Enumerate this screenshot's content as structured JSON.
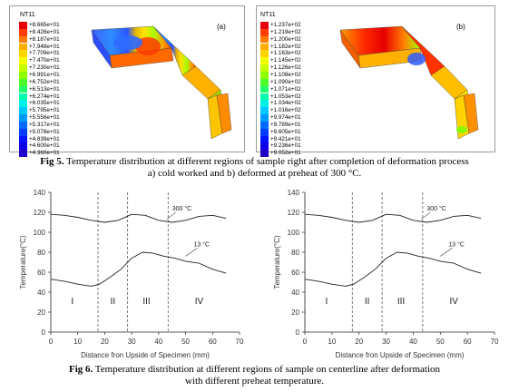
{
  "fig5": {
    "panel_a": {
      "title": "NT11",
      "tag": "(a)",
      "values": [
        "+8.665e+01",
        "+8.426e+01",
        "+8.187e+01",
        "+7.948e+01",
        "+7.709e+01",
        "+7.470e+01",
        "+7.230e+01",
        "+6.991e+01",
        "+6.752e+01",
        "+6.513e+01",
        "+6.274e+01",
        "+6.035e+01",
        "+5.795e+01",
        "+5.556e+01",
        "+5.317e+01",
        "+5.078e+01",
        "+4.839e+01",
        "+4.600e+01",
        "+4.360e+01"
      ]
    },
    "panel_b": {
      "title": "NT11",
      "tag": "(b)",
      "values": [
        "+1.237e+02",
        "+1.219e+02",
        "+1.200e+02",
        "+1.182e+02",
        "+1.163e+02",
        "+1.145e+02",
        "+1.126e+02",
        "+1.108e+02",
        "+1.090e+02",
        "+1.071e+02",
        "+1.053e+02",
        "+1.034e+02",
        "+1.016e+02",
        "+9.974e+01",
        "+9.789e+01",
        "+9.605e+01",
        "+9.421e+01",
        "+9.236e+01",
        "+9.052e+01"
      ]
    },
    "legend_colors": [
      "#e8000b",
      "#ff3c00",
      "#ff7a00",
      "#ffae00",
      "#ffd400",
      "#f2ff00",
      "#c6ff00",
      "#8dff00",
      "#4cff2a",
      "#1eff6a",
      "#00ffab",
      "#00f0e8",
      "#00c8ff",
      "#009bff",
      "#006aff",
      "#003cff",
      "#0012ff",
      "#1000e6",
      "#2000c8"
    ],
    "caption_label": "Fig 5.",
    "caption_line1": " Temperature distribution at different regions of sample right after completion of deformation process",
    "caption_line2": "a) cold worked and b) deformed at preheat of 300 °C."
  },
  "fig6": {
    "caption_label": "Fig 6.",
    "caption_line1": " Temperature distribution at different regions of sample on centerline after deformation",
    "caption_line2": "with different preheat temperature."
  },
  "chart_data": [
    {
      "type": "line",
      "title": "",
      "xlabel": "Distance fron Upside of Specimen (mm)",
      "ylabel": "Temperature(°C)",
      "xlim": [
        0,
        70
      ],
      "ylim": [
        0,
        140
      ],
      "xticks": [
        0,
        10,
        20,
        30,
        40,
        50,
        60,
        70
      ],
      "yticks": [
        0,
        20,
        40,
        60,
        80,
        100,
        120,
        140
      ],
      "region_boundaries": [
        17.5,
        28.5,
        43.5
      ],
      "regions": [
        {
          "label": "I",
          "x": 8
        },
        {
          "label": "II",
          "x": 23
        },
        {
          "label": "III",
          "x": 35.5
        },
        {
          "label": "IV",
          "x": 55
        }
      ],
      "series": [
        {
          "name": "300 °C",
          "color": "#222222",
          "x": [
            0,
            5,
            10,
            15,
            20,
            25,
            30,
            35,
            40,
            45,
            50,
            55,
            60,
            65
          ],
          "y": [
            118,
            117,
            115,
            112,
            110,
            112,
            118,
            117,
            112,
            110,
            112,
            116,
            117,
            114
          ]
        },
        {
          "name": "13 °C",
          "color": "#222222",
          "x": [
            0,
            5,
            10,
            15,
            18,
            22,
            26,
            30,
            34,
            38,
            42,
            46,
            50,
            55,
            60,
            65
          ],
          "y": [
            53,
            51,
            48,
            46,
            48,
            55,
            63,
            74,
            80,
            79,
            76,
            74,
            71,
            69,
            63,
            59
          ]
        }
      ],
      "annotations": [
        {
          "text": "300 °C",
          "x": 45,
          "y": 122,
          "target_x": 43,
          "target_y": 113
        },
        {
          "text": "13 °C",
          "x": 53,
          "y": 86,
          "target_x": 50,
          "target_y": 76
        }
      ]
    },
    {
      "type": "line",
      "title": "",
      "xlabel": "Distance fron Upside of Specimen (mm)",
      "ylabel": "Temperature(°C)",
      "xlim": [
        0,
        70
      ],
      "ylim": [
        0,
        140
      ],
      "xticks": [
        0,
        10,
        20,
        30,
        40,
        50,
        60,
        70
      ],
      "yticks": [
        0,
        20,
        40,
        60,
        80,
        100,
        120,
        140
      ],
      "region_boundaries": [
        17.5,
        28.5,
        43.5
      ],
      "regions": [
        {
          "label": "I",
          "x": 8
        },
        {
          "label": "II",
          "x": 23
        },
        {
          "label": "III",
          "x": 35.5
        },
        {
          "label": "IV",
          "x": 55
        }
      ],
      "series": [
        {
          "name": "300 °C",
          "color": "#222222",
          "x": [
            0,
            5,
            10,
            15,
            20,
            25,
            30,
            35,
            40,
            45,
            50,
            55,
            60,
            65
          ],
          "y": [
            118,
            117,
            115,
            112,
            110,
            112,
            118,
            117,
            112,
            110,
            112,
            116,
            117,
            114
          ]
        },
        {
          "name": "13 °C",
          "color": "#222222",
          "x": [
            0,
            5,
            10,
            15,
            18,
            22,
            26,
            30,
            34,
            38,
            42,
            46,
            50,
            55,
            60,
            65
          ],
          "y": [
            53,
            51,
            48,
            46,
            48,
            55,
            63,
            74,
            80,
            79,
            76,
            74,
            71,
            69,
            63,
            59
          ]
        }
      ],
      "annotations": [
        {
          "text": "300 °C",
          "x": 45,
          "y": 122,
          "target_x": 43,
          "target_y": 113
        },
        {
          "text": "13 °C",
          "x": 53,
          "y": 86,
          "target_x": 50,
          "target_y": 76
        }
      ]
    }
  ]
}
